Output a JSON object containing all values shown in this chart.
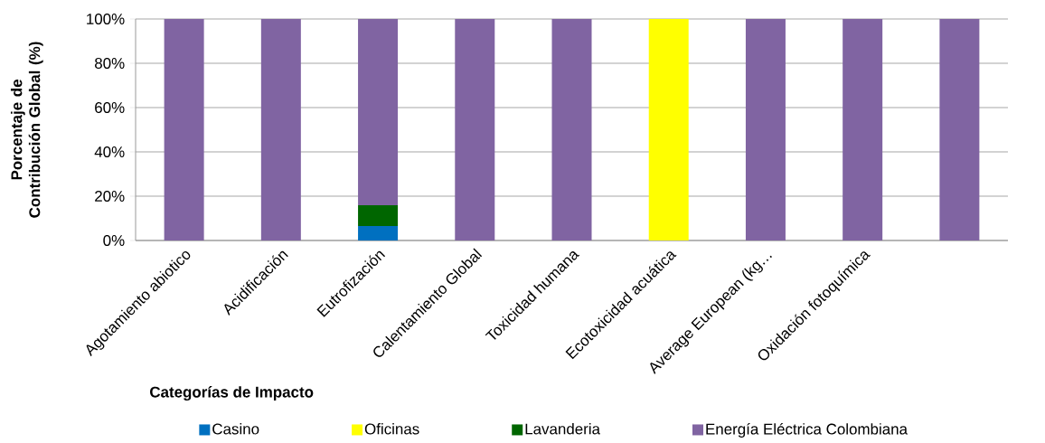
{
  "chart_data": {
    "type": "bar",
    "stacked": true,
    "xlabel": "Categorías de Impacto",
    "ylabel": "Porcentaje de Contribución Global (%)",
    "categories": [
      "Agotamiento abiotico",
      "Acidificación",
      "Eutrofización",
      "Calentamiento Global",
      "Toxicidad humana",
      "Ecotoxicidad acuática",
      "Average European (kg…",
      "Oxidación fotoquímica",
      null
    ],
    "series": [
      {
        "name": "Casino",
        "color": "#0070c0",
        "values": [
          0,
          0,
          6.5,
          0,
          0,
          0,
          0,
          0,
          0
        ]
      },
      {
        "name": "Oficinas",
        "color": "#ffff00",
        "values": [
          0,
          0,
          0,
          0,
          0,
          100,
          0,
          0,
          0
        ]
      },
      {
        "name": "Lavanderia",
        "color": "#006600",
        "values": [
          0,
          0,
          9.4,
          0,
          0,
          0,
          0,
          0,
          0
        ]
      },
      {
        "name": "Energía Eléctrica Colombiana",
        "color": "#8064a2",
        "values": [
          100,
          100,
          84.1,
          100,
          100,
          0,
          100,
          100,
          100
        ]
      }
    ],
    "ylim": [
      0,
      100
    ],
    "yticks": [
      {
        "value": 0,
        "label": "0%"
      },
      {
        "value": 20,
        "label": "20%"
      },
      {
        "value": 40,
        "label": "40%"
      },
      {
        "value": 60,
        "label": "60%"
      },
      {
        "value": 80,
        "label": "80%"
      },
      {
        "value": 100,
        "label": "100%"
      }
    ],
    "grid": "y",
    "legend": "bottom"
  }
}
